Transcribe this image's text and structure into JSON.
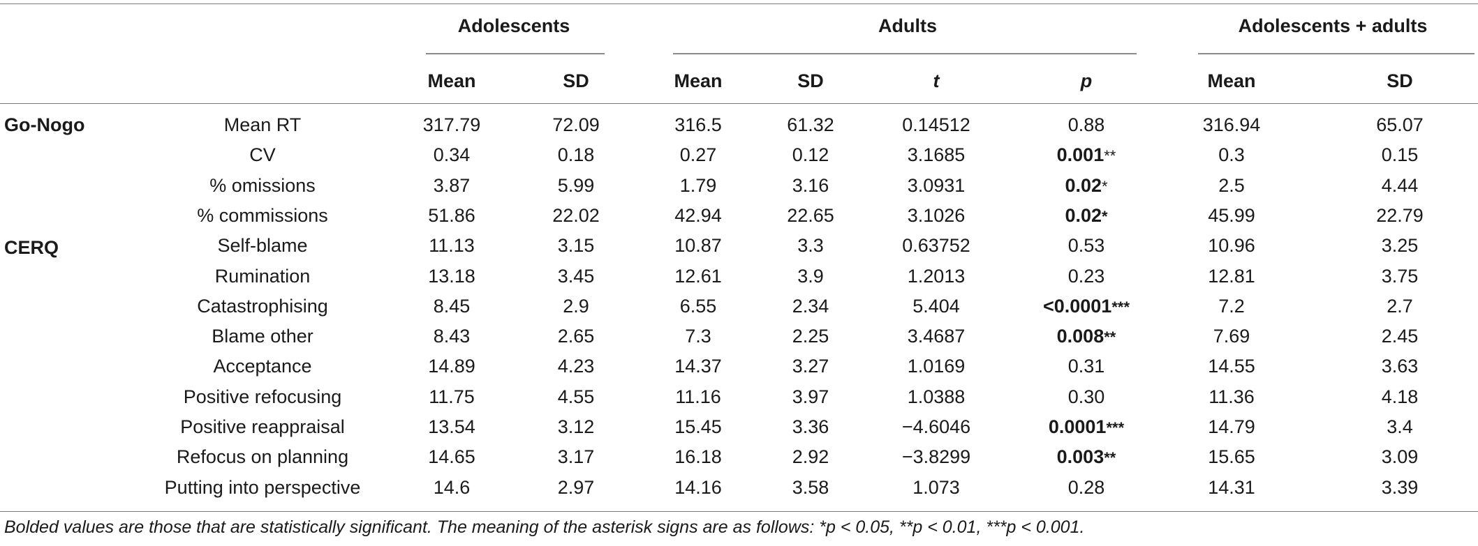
{
  "groups": {
    "adolescents": "Adolescents",
    "adults": "Adults",
    "combined": "Adolescents + adults"
  },
  "columns": {
    "adol_mean": "Mean",
    "adol_sd": "SD",
    "adult_mean": "Mean",
    "adult_sd": "SD",
    "t": "t",
    "p": "p",
    "comb_mean": "Mean",
    "comb_sd": "SD"
  },
  "sections": {
    "gonogo": "Go-Nogo",
    "cerq": "CERQ"
  },
  "rows": [
    {
      "label": "Mean RT",
      "adol_mean": "317.79",
      "adol_sd": "72.09",
      "adult_mean": "316.5",
      "adult_sd": "61.32",
      "t": "0.14512",
      "p": "0.88",
      "p_stars": "",
      "p_bold": false,
      "stars_bold": false,
      "comb_mean": "316.94",
      "comb_sd": "65.07"
    },
    {
      "label": "CV",
      "adol_mean": "0.34",
      "adol_sd": "0.18",
      "adult_mean": "0.27",
      "adult_sd": "0.12",
      "t": "3.1685",
      "p": "0.001",
      "p_stars": "**",
      "p_bold": true,
      "stars_bold": false,
      "comb_mean": "0.3",
      "comb_sd": "0.15"
    },
    {
      "label": "% omissions",
      "adol_mean": "3.87",
      "adol_sd": "5.99",
      "adult_mean": "1.79",
      "adult_sd": "3.16",
      "t": "3.0931",
      "p": "0.02",
      "p_stars": "*",
      "p_bold": true,
      "stars_bold": false,
      "comb_mean": "2.5",
      "comb_sd": "4.44"
    },
    {
      "label": "% commissions",
      "adol_mean": "51.86",
      "adol_sd": "22.02",
      "adult_mean": "42.94",
      "adult_sd": "22.65",
      "t": "3.1026",
      "p": "0.02",
      "p_stars": "*",
      "p_bold": true,
      "stars_bold": true,
      "comb_mean": "45.99",
      "comb_sd": "22.79"
    },
    {
      "label": "Self-blame",
      "adol_mean": "11.13",
      "adol_sd": "3.15",
      "adult_mean": "10.87",
      "adult_sd": "3.3",
      "t": "0.63752",
      "p": "0.53",
      "p_stars": "",
      "p_bold": false,
      "stars_bold": false,
      "comb_mean": "10.96",
      "comb_sd": "3.25"
    },
    {
      "label": "Rumination",
      "adol_mean": "13.18",
      "adol_sd": "3.45",
      "adult_mean": "12.61",
      "adult_sd": "3.9",
      "t": "1.2013",
      "p": "0.23",
      "p_stars": "",
      "p_bold": false,
      "stars_bold": false,
      "comb_mean": "12.81",
      "comb_sd": "3.75"
    },
    {
      "label": "Catastrophising",
      "adol_mean": "8.45",
      "adol_sd": "2.9",
      "adult_mean": "6.55",
      "adult_sd": "2.34",
      "t": "5.404",
      "p": "<0.0001",
      "p_stars": "***",
      "p_bold": true,
      "stars_bold": true,
      "comb_mean": "7.2",
      "comb_sd": "2.7"
    },
    {
      "label": "Blame other",
      "adol_mean": "8.43",
      "adol_sd": "2.65",
      "adult_mean": "7.3",
      "adult_sd": "2.25",
      "t": "3.4687",
      "p": "0.008",
      "p_stars": "**",
      "p_bold": true,
      "stars_bold": true,
      "comb_mean": "7.69",
      "comb_sd": "2.45"
    },
    {
      "label": "Acceptance",
      "adol_mean": "14.89",
      "adol_sd": "4.23",
      "adult_mean": "14.37",
      "adult_sd": "3.27",
      "t": "1.0169",
      "p": "0.31",
      "p_stars": "",
      "p_bold": false,
      "stars_bold": false,
      "comb_mean": "14.55",
      "comb_sd": "3.63"
    },
    {
      "label": "Positive refocusing",
      "adol_mean": "11.75",
      "adol_sd": "4.55",
      "adult_mean": "11.16",
      "adult_sd": "3.97",
      "t": "1.0388",
      "p": "0.30",
      "p_stars": "",
      "p_bold": false,
      "stars_bold": false,
      "comb_mean": "11.36",
      "comb_sd": "4.18"
    },
    {
      "label": "Positive reappraisal",
      "adol_mean": "13.54",
      "adol_sd": "3.12",
      "adult_mean": "15.45",
      "adult_sd": "3.36",
      "t": "−4.6046",
      "p": "0.0001",
      "p_stars": "***",
      "p_bold": true,
      "stars_bold": true,
      "comb_mean": "14.79",
      "comb_sd": "3.4"
    },
    {
      "label": "Refocus on planning",
      "adol_mean": "14.65",
      "adol_sd": "3.17",
      "adult_mean": "16.18",
      "adult_sd": "2.92",
      "t": "−3.8299",
      "p": "0.003",
      "p_stars": "**",
      "p_bold": true,
      "stars_bold": true,
      "comb_mean": "15.65",
      "comb_sd": "3.09"
    },
    {
      "label": "Putting into perspective",
      "adol_mean": "14.6",
      "adol_sd": "2.97",
      "adult_mean": "14.16",
      "adult_sd": "3.58",
      "t": "1.073",
      "p": "0.28",
      "p_stars": "",
      "p_bold": false,
      "stars_bold": false,
      "comb_mean": "14.31",
      "comb_sd": "3.39"
    }
  ],
  "footnote": "Bolded values are those that are statistically significant. The meaning of the asterisk signs are as follows: *p < 0.05, **p < 0.01, ***p < 0.001."
}
